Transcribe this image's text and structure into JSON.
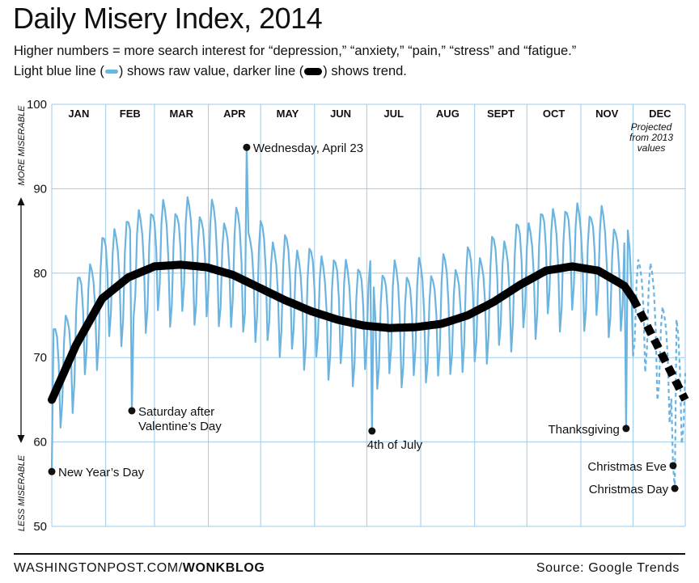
{
  "header": {
    "title": "Daily Misery Index, 2014",
    "subtitle_line1": "Higher numbers = more search interest for “depression,” “anxiety,” “pain,” “stress” and “fatigue.”",
    "subtitle_line2_a": "Light blue line (",
    "subtitle_line2_b": ") shows raw value, darker line (",
    "subtitle_line2_c": ") shows trend."
  },
  "footer": {
    "site": "WASHINGTONPOST.COM/",
    "section": "WONKBLOG",
    "source": "Source: Google Trends"
  },
  "chart_data": {
    "type": "line",
    "title": "Daily Misery Index, 2014",
    "ylim": [
      50,
      100
    ],
    "yticks": [
      50,
      60,
      70,
      80,
      90,
      100
    ],
    "xlim": [
      1,
      365
    ],
    "ylabel_top": "MORE MISERABLE",
    "ylabel_bottom": "LESS MISERABLE",
    "months": [
      {
        "label": "JAN",
        "start": 1
      },
      {
        "label": "FEB",
        "start": 32
      },
      {
        "label": "MAR",
        "start": 60
      },
      {
        "label": "APR",
        "start": 91
      },
      {
        "label": "MAY",
        "start": 121
      },
      {
        "label": "JUN",
        "start": 152
      },
      {
        "label": "JUL",
        "start": 182
      },
      {
        "label": "AUG",
        "start": 213
      },
      {
        "label": "SEPT",
        "start": 244
      },
      {
        "label": "OCT",
        "start": 274
      },
      {
        "label": "NOV",
        "start": 305
      },
      {
        "label": "DEC",
        "start": 335
      }
    ],
    "grid": true,
    "projection_start_day": 335,
    "projection_note": [
      "Projected",
      "from 2013",
      "values"
    ],
    "series": [
      {
        "role": "raw",
        "color": "#6cb4e0",
        "trend_day": [
          1,
          15,
          30,
          45,
          60,
          75,
          90,
          105,
          120,
          135,
          150,
          165,
          180,
          195,
          210,
          225,
          240,
          255,
          270,
          285,
          300,
          315,
          330,
          335,
          345,
          355,
          365
        ],
        "trend_value": [
          65,
          71.5,
          77,
          79.5,
          80.8,
          81,
          80.7,
          79.8,
          78.3,
          76.8,
          75.5,
          74.5,
          73.8,
          73.5,
          73.6,
          74,
          75,
          76.6,
          78.6,
          80.3,
          80.8,
          80.3,
          78.5,
          77,
          73,
          69,
          65
        ],
        "weekly_amplitude": 7
      },
      {
        "role": "trend",
        "color": "#000000",
        "x": [
          1,
          15,
          30,
          45,
          60,
          75,
          90,
          105,
          120,
          135,
          150,
          165,
          180,
          195,
          210,
          225,
          240,
          255,
          270,
          285,
          300,
          315,
          330,
          335,
          345,
          355,
          365
        ],
        "y": [
          65,
          71.5,
          77,
          79.5,
          80.8,
          81,
          80.7,
          79.8,
          78.3,
          76.8,
          75.5,
          74.5,
          73.8,
          73.5,
          73.6,
          74,
          75,
          76.6,
          78.6,
          80.3,
          80.8,
          80.3,
          78.5,
          77,
          73,
          69,
          65
        ]
      }
    ],
    "annotations": [
      {
        "day": 1,
        "value": 56.5,
        "lines": [
          "New Year’s Day"
        ],
        "anchor": "right"
      },
      {
        "day": 47,
        "value": 63.7,
        "lines": [
          "Saturday after",
          "Valentine’s Day"
        ],
        "anchor": "right"
      },
      {
        "day": 113,
        "value": 94.9,
        "lines": [
          "Wednesday, April 23"
        ],
        "anchor": "right"
      },
      {
        "day": 185,
        "value": 61.3,
        "lines": [
          "4th of July"
        ],
        "anchor": "below"
      },
      {
        "day": 331,
        "value": 61.6,
        "lines": [
          "Thanksgiving"
        ],
        "anchor": "left"
      },
      {
        "day": 358,
        "value": 57.2,
        "lines": [
          "Christmas Eve"
        ],
        "anchor": "left"
      },
      {
        "day": 359,
        "value": 54.5,
        "lines": [
          "Christmas Day"
        ],
        "anchor": "left"
      }
    ]
  }
}
